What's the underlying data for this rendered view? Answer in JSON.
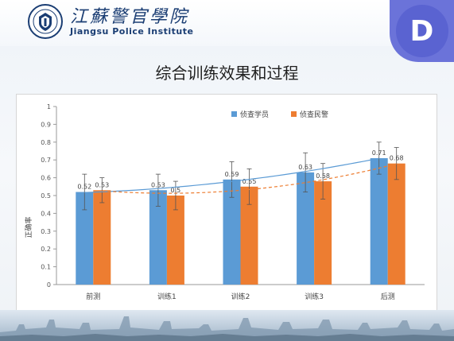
{
  "header": {
    "logo_cn": "江蘇警官學院",
    "logo_en": "Jiangsu Police Institute",
    "badge_letter": "D"
  },
  "slide_title": "综合训练效果和过程",
  "chart_data": {
    "type": "bar",
    "title": "",
    "xlabel": "",
    "ylabel": "正确率",
    "ylim": [
      0,
      1
    ],
    "yticks": [
      0,
      0.1,
      0.2,
      0.3,
      0.4,
      0.5,
      0.6,
      0.7,
      0.8,
      0.9,
      1
    ],
    "ytick_labels": [
      "0",
      "0.1",
      "0.2",
      "0.3",
      "0.4",
      "0.5",
      "0.6",
      "0.7",
      "0.8",
      "0.9",
      "1"
    ],
    "grid": false,
    "legend_position": "top-right",
    "categories": [
      "前测",
      "训练1",
      "训练2",
      "训练3",
      "后测"
    ],
    "series": [
      {
        "name": "侦查学员",
        "color": "#5b9bd5",
        "values": [
          0.52,
          0.53,
          0.59,
          0.63,
          0.71
        ],
        "value_labels": [
          "0.52",
          "0.53",
          "0.59",
          "0.63",
          "0.71"
        ],
        "error": [
          0.1,
          0.09,
          0.1,
          0.11,
          0.09
        ],
        "trendline": {
          "style": "solid",
          "color": "#5b9bd5"
        }
      },
      {
        "name": "侦查民警",
        "color": "#ed7d31",
        "values": [
          0.53,
          0.5,
          0.55,
          0.58,
          0.68
        ],
        "value_labels": [
          "0.53",
          "0.5",
          "0.55",
          "0.58",
          "0.68"
        ],
        "error": [
          0.07,
          0.08,
          0.1,
          0.1,
          0.09
        ],
        "trendline": {
          "style": "dashed",
          "color": "#ed7d31"
        }
      }
    ]
  }
}
